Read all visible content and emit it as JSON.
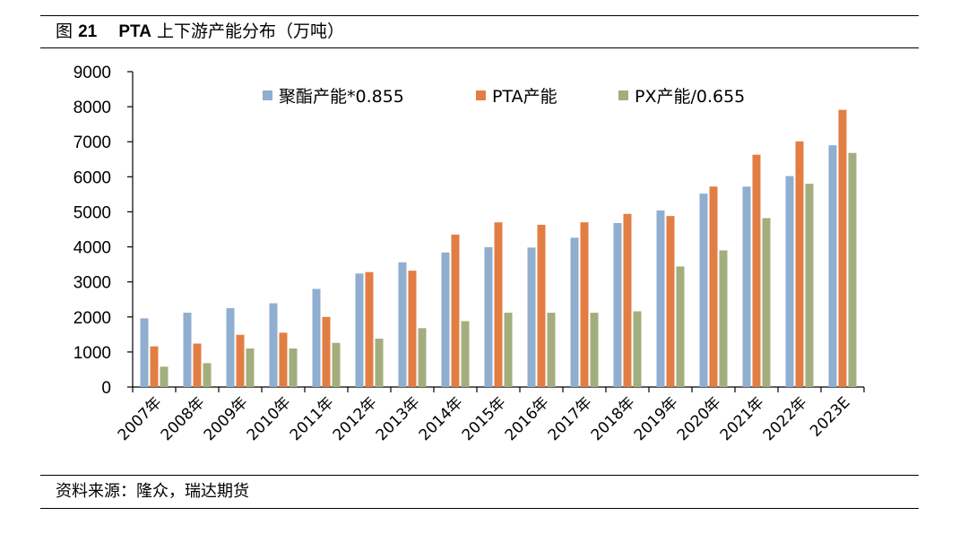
{
  "caption": {
    "prefix": "图",
    "number": "21",
    "bold_part": "PTA",
    "rest": "上下游产能分布（万吨）"
  },
  "source": "资料来源：隆众，瑞达期货",
  "colors": {
    "polyester": "#8FAED0",
    "pta": "#E27E43",
    "px": "#A3AE7E"
  },
  "chart_data": {
    "type": "bar",
    "categories": [
      "2007年",
      "2008年",
      "2009年",
      "2010年",
      "2011年",
      "2012年",
      "2013年",
      "2014年",
      "2015年",
      "2016年",
      "2017年",
      "2018年",
      "2019年",
      "2020年",
      "2021年",
      "2022年",
      "2023E"
    ],
    "series": [
      {
        "name": "聚酯产能*0.855",
        "values": [
          1960,
          2120,
          2250,
          2390,
          2800,
          3240,
          3560,
          3840,
          3990,
          3980,
          4260,
          4680,
          5040,
          5520,
          5720,
          6020,
          6900
        ]
      },
      {
        "name": "PTA产能",
        "values": [
          1160,
          1240,
          1490,
          1550,
          2000,
          3280,
          3320,
          4350,
          4700,
          4630,
          4700,
          4940,
          4880,
          5720,
          6630,
          7010,
          7910
        ]
      },
      {
        "name": "PX产能/0.655",
        "values": [
          580,
          680,
          1100,
          1100,
          1260,
          1380,
          1680,
          1880,
          2120,
          2120,
          2120,
          2160,
          3440,
          3900,
          4820,
          5800,
          6680
        ]
      }
    ],
    "yticks": [
      "0",
      "1000",
      "2000",
      "3000",
      "4000",
      "5000",
      "6000",
      "7000",
      "8000",
      "9000"
    ],
    "ylim": [
      0,
      9000
    ],
    "grid": false,
    "legend_position": "top"
  }
}
